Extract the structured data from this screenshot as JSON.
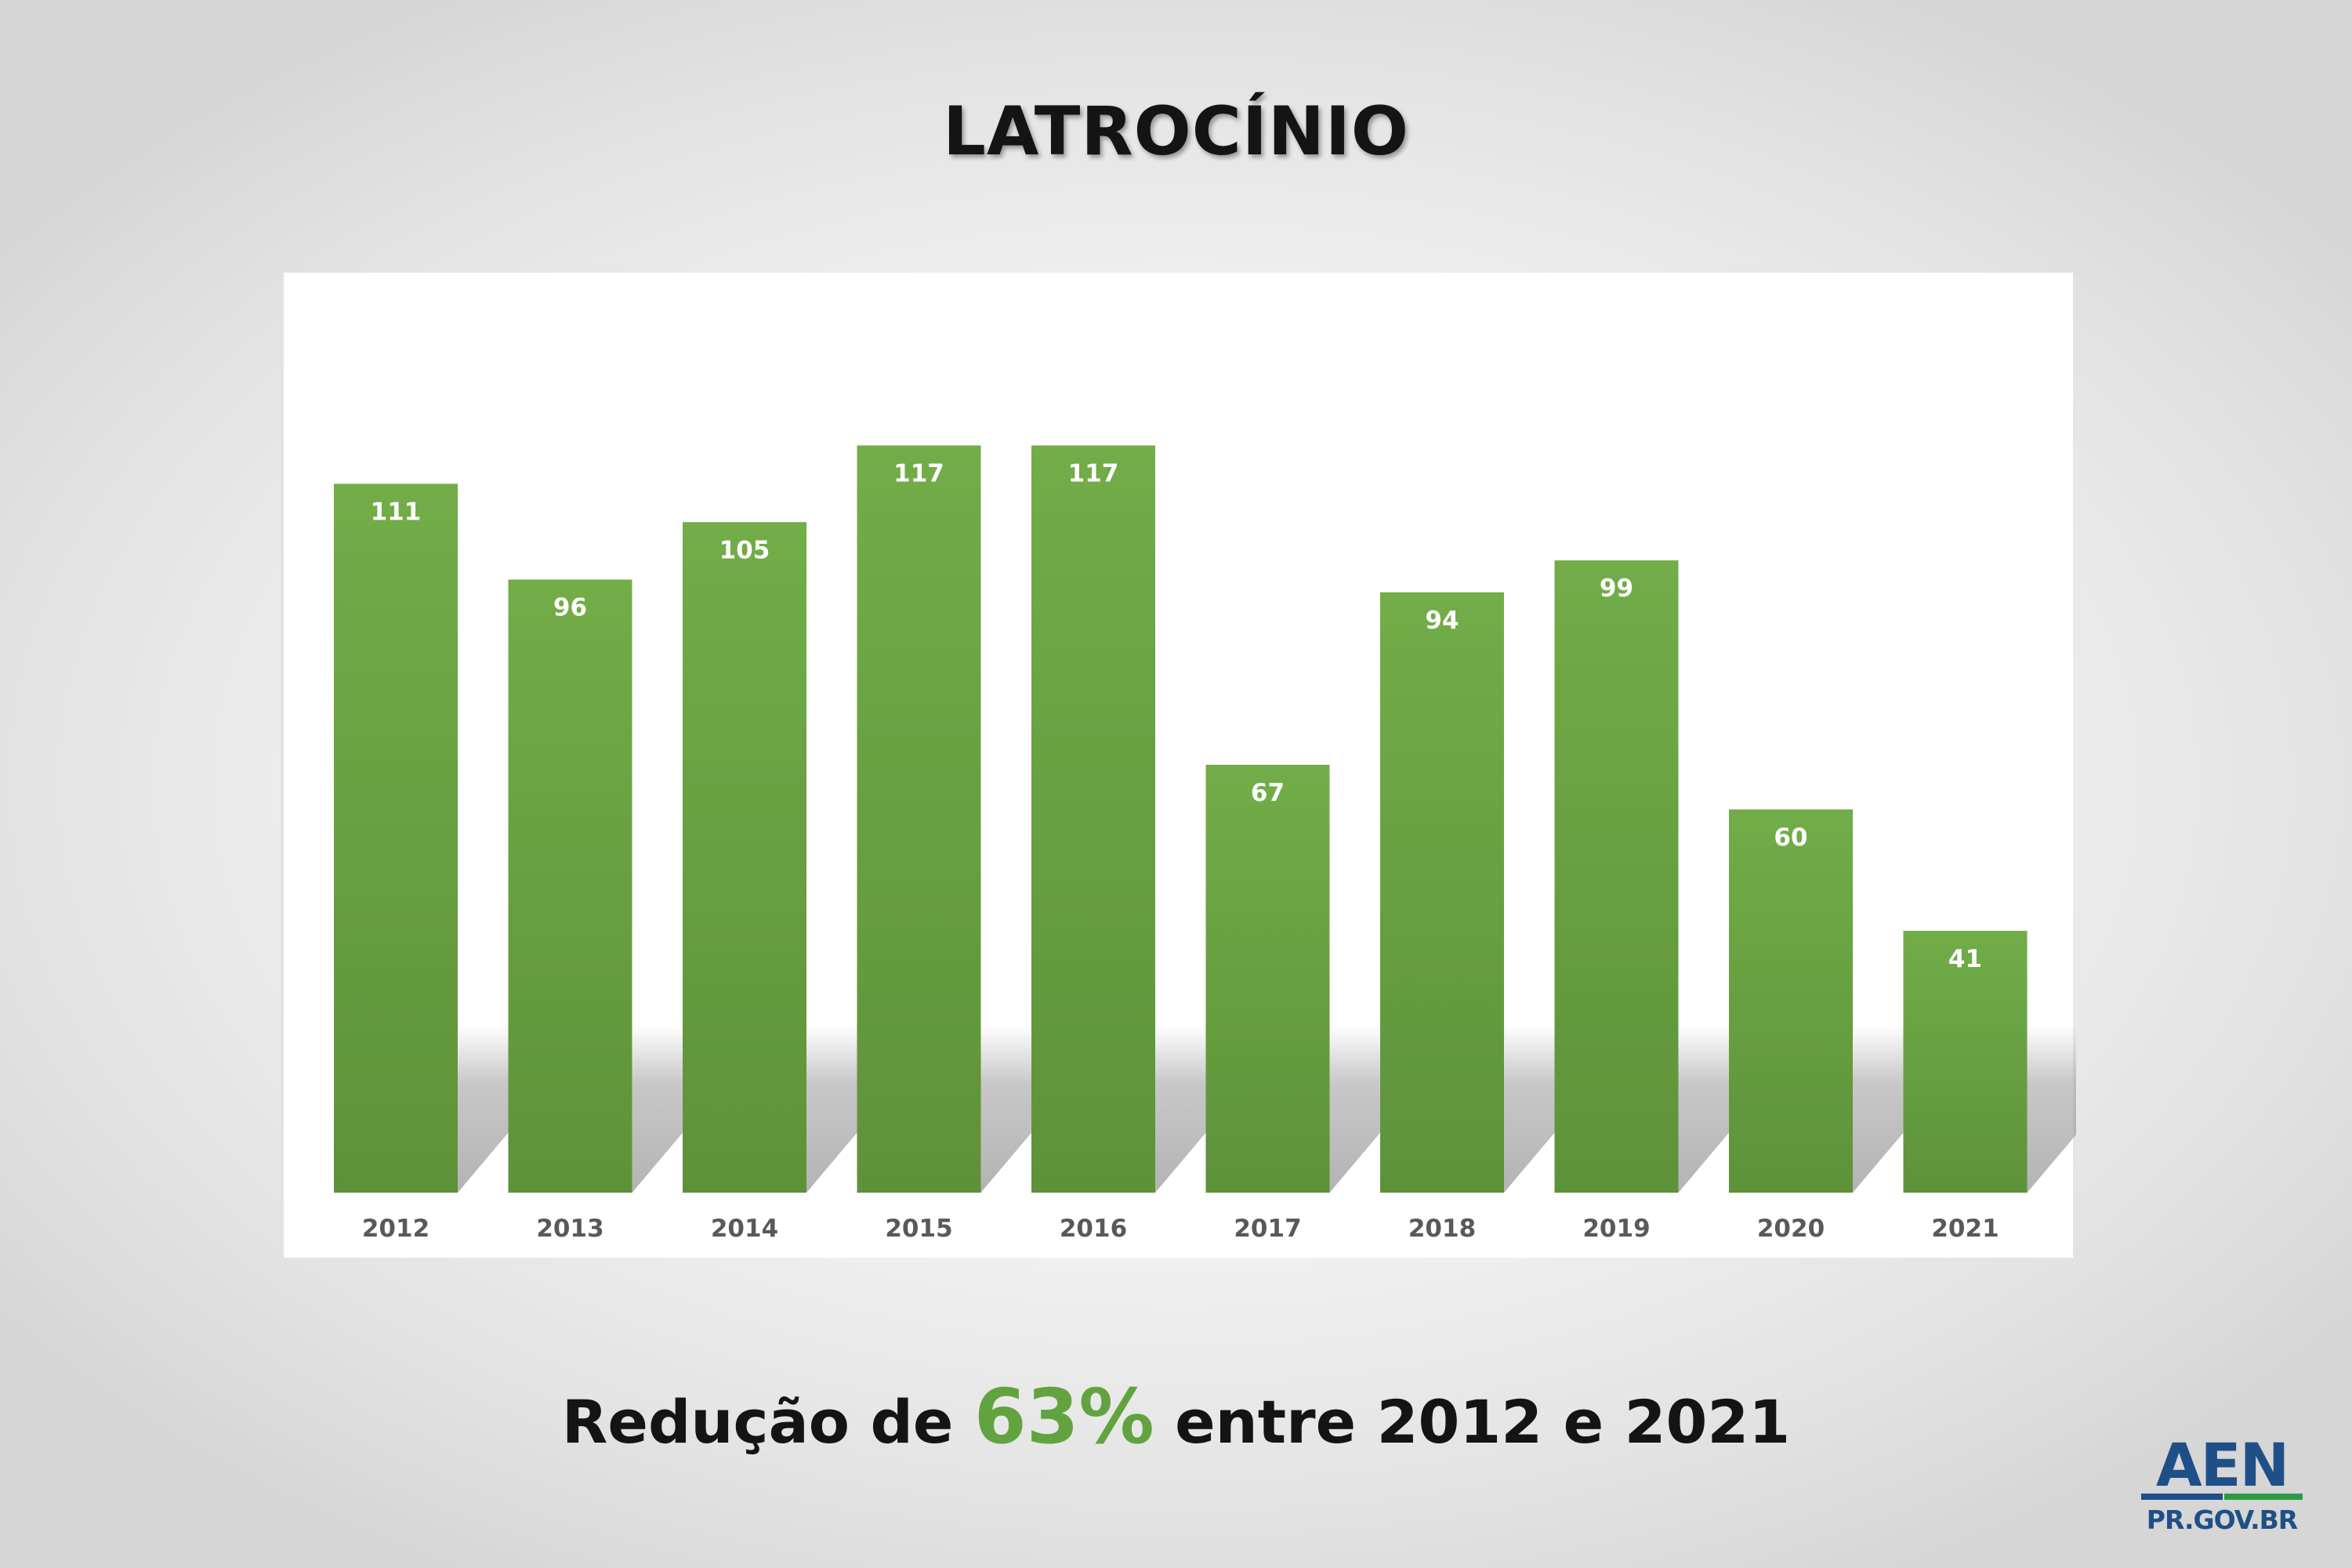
{
  "title": "LATROCÍNIO",
  "caption": {
    "prefix": "Redução de ",
    "highlight": "63%",
    "suffix": " entre 2012 e 2021"
  },
  "logo": {
    "word": "AEN",
    "sub": "PR.GOV.BR"
  },
  "colors": {
    "bar_top": "#72ad48",
    "bar_bottom": "#5e923a",
    "label_text": "#ffffff",
    "tick_text": "#595959",
    "highlight": "#62a33f"
  },
  "chart_data": {
    "type": "bar",
    "categories": [
      "2012",
      "2013",
      "2014",
      "2015",
      "2016",
      "2017",
      "2018",
      "2019",
      "2020",
      "2021"
    ],
    "values": [
      111,
      96,
      105,
      117,
      117,
      67,
      94,
      99,
      60,
      41
    ],
    "title": "LATROCÍNIO",
    "xlabel": "",
    "ylabel": "",
    "ylim": [
      0,
      140
    ],
    "grid": false,
    "legend": "none",
    "data_labels": true
  }
}
